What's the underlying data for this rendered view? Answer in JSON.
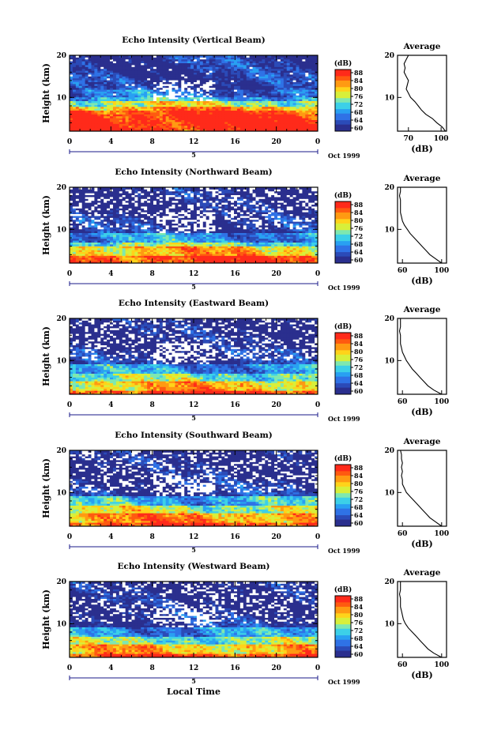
{
  "colors": {
    "colormap": [
      "#2a2f8e",
      "#2b4bb8",
      "#2f72e6",
      "#29a0f2",
      "#3cd0e8",
      "#7fe8b0",
      "#d8ef3a",
      "#ffd31a",
      "#ff9a12",
      "#ff5a10",
      "#ff2a1a"
    ],
    "missing": "#ffffff"
  },
  "colorbar": {
    "unit": "(dB)",
    "ticks": [
      "88",
      "84",
      "80",
      "76",
      "72",
      "68",
      "64",
      "60"
    ]
  },
  "common": {
    "y_axis_label": "Height (km)",
    "y_ticks": [
      "20",
      "10"
    ],
    "x_ticks": [
      "0",
      "4",
      "8",
      "12",
      "16",
      "20",
      "0"
    ],
    "day_label": "5",
    "month_label": "Oct 1999",
    "profile_title": "Average",
    "profile_xlabel": "(dB)",
    "profile_yticks": [
      "20",
      "10"
    ]
  },
  "x_axis_label": "Local Time",
  "panels": [
    {
      "title": "Echo Intensity (Vertical Beam)",
      "avg_xticks": [
        "70",
        "100"
      ]
    },
    {
      "title": "Echo Intensity (Northward Beam)",
      "avg_xticks": [
        "60",
        "100"
      ]
    },
    {
      "title": "Echo Intensity (Eastward Beam)",
      "avg_xticks": [
        "60",
        "100"
      ]
    },
    {
      "title": "Echo Intensity (Southward Beam)",
      "avg_xticks": [
        "60",
        "100"
      ]
    },
    {
      "title": "Echo Intensity (Westward Beam)",
      "avg_xticks": [
        "60",
        "100"
      ]
    }
  ],
  "chart_data": [
    {
      "type": "heatmap",
      "title": "Echo Intensity (Vertical Beam)",
      "xlabel": "",
      "ylabel": "Height (km)",
      "x_range_hours": [
        0,
        24
      ],
      "y_range_km": [
        2,
        20
      ],
      "color_range_db": [
        60,
        88
      ],
      "layers": [
        {
          "top_km": 6,
          "db": 88
        },
        {
          "top_km": 7,
          "db": 86
        },
        {
          "top_km": 8,
          "db": 82
        },
        {
          "top_km": 9,
          "db": 76
        },
        {
          "top_km": 10,
          "db": 70
        },
        {
          "top_km": 12,
          "db": 66
        },
        {
          "top_km": 20,
          "db": 62
        }
      ],
      "average_profile": {
        "title": "Average",
        "xlabel": "(dB)",
        "x_range_db": [
          60,
          105
        ],
        "y_range_km": [
          2,
          20
        ],
        "height_km": [
          2,
          3,
          4,
          5,
          6,
          7,
          8,
          9,
          10,
          11,
          12,
          13,
          14,
          15,
          16,
          17,
          18,
          19,
          20
        ],
        "db": [
          104,
          101,
          96,
          92,
          86,
          82,
          79,
          76,
          72,
          70,
          68,
          69,
          70,
          68,
          66,
          67,
          66,
          68,
          70
        ]
      }
    },
    {
      "type": "heatmap",
      "title": "Echo Intensity (Northward Beam)",
      "xlabel": "",
      "ylabel": "Height (km)",
      "x_range_hours": [
        0,
        24
      ],
      "y_range_km": [
        2,
        20
      ],
      "color_range_db": [
        60,
        88
      ],
      "layers": [
        {
          "top_km": 4,
          "db": 86
        },
        {
          "top_km": 6,
          "db": 80
        },
        {
          "top_km": 7,
          "db": 74
        },
        {
          "top_km": 9,
          "db": 68
        },
        {
          "top_km": 13,
          "db": 62
        },
        {
          "top_km": 20,
          "db": 60
        }
      ],
      "average_profile": {
        "title": "Average",
        "xlabel": "(dB)",
        "x_range_db": [
          55,
          105
        ],
        "y_range_km": [
          2,
          20
        ],
        "height_km": [
          2,
          3,
          4,
          5,
          6,
          7,
          8,
          9,
          10,
          11,
          12,
          13,
          14,
          15,
          16,
          17,
          18,
          19,
          20
        ],
        "db": [
          100,
          94,
          88,
          84,
          80,
          76,
          72,
          68,
          65,
          62,
          60,
          59,
          58,
          58,
          58,
          58,
          57,
          58,
          58
        ]
      }
    },
    {
      "type": "heatmap",
      "title": "Echo Intensity (Eastward Beam)",
      "xlabel": "",
      "ylabel": "Height (km)",
      "x_range_hours": [
        0,
        24
      ],
      "y_range_km": [
        2,
        20
      ],
      "color_range_db": [
        60,
        88
      ],
      "layers": [
        {
          "top_km": 3,
          "db": 86
        },
        {
          "top_km": 5,
          "db": 80
        },
        {
          "top_km": 7,
          "db": 74
        },
        {
          "top_km": 9,
          "db": 68
        },
        {
          "top_km": 13,
          "db": 62
        },
        {
          "top_km": 20,
          "db": 60
        }
      ],
      "average_profile": {
        "title": "Average",
        "xlabel": "(dB)",
        "x_range_db": [
          55,
          105
        ],
        "y_range_km": [
          2,
          20
        ],
        "height_km": [
          2,
          3,
          4,
          5,
          6,
          7,
          8,
          9,
          10,
          11,
          12,
          13,
          14,
          15,
          16,
          17,
          18,
          19,
          20
        ],
        "db": [
          100,
          92,
          86,
          82,
          78,
          74,
          70,
          67,
          64,
          62,
          60,
          59,
          58,
          58,
          58,
          57,
          58,
          58,
          58
        ]
      }
    },
    {
      "type": "heatmap",
      "title": "Echo Intensity (Southward Beam)",
      "xlabel": "",
      "ylabel": "Height (km)",
      "x_range_hours": [
        0,
        24
      ],
      "y_range_km": [
        2,
        20
      ],
      "color_range_db": [
        60,
        88
      ],
      "layers": [
        {
          "top_km": 3,
          "db": 86
        },
        {
          "top_km": 5,
          "db": 82
        },
        {
          "top_km": 7,
          "db": 76
        },
        {
          "top_km": 9,
          "db": 70
        },
        {
          "top_km": 13,
          "db": 62
        },
        {
          "top_km": 20,
          "db": 60
        }
      ],
      "average_profile": {
        "title": "Average",
        "xlabel": "(dB)",
        "x_range_db": [
          55,
          105
        ],
        "y_range_km": [
          2,
          20
        ],
        "height_km": [
          2,
          3,
          4,
          5,
          6,
          7,
          8,
          9,
          10,
          11,
          12,
          13,
          14,
          15,
          16,
          17,
          18,
          19,
          20
        ],
        "db": [
          100,
          94,
          88,
          84,
          80,
          76,
          72,
          68,
          64,
          62,
          60,
          60,
          59,
          60,
          59,
          60,
          59,
          59,
          58
        ]
      }
    },
    {
      "type": "heatmap",
      "title": "Echo Intensity (Westward Beam)",
      "xlabel": "Local Time",
      "ylabel": "Height (km)",
      "x_range_hours": [
        0,
        24
      ],
      "y_range_km": [
        2,
        20
      ],
      "color_range_db": [
        60,
        88
      ],
      "layers": [
        {
          "top_km": 3,
          "db": 86
        },
        {
          "top_km": 5,
          "db": 80
        },
        {
          "top_km": 7,
          "db": 74
        },
        {
          "top_km": 9,
          "db": 68
        },
        {
          "top_km": 13,
          "db": 62
        },
        {
          "top_km": 20,
          "db": 60
        }
      ],
      "average_profile": {
        "title": "Average",
        "xlabel": "(dB)",
        "x_range_db": [
          55,
          105
        ],
        "y_range_km": [
          2,
          20
        ],
        "height_km": [
          2,
          3,
          4,
          5,
          6,
          7,
          8,
          9,
          10,
          11,
          12,
          13,
          14,
          15,
          16,
          17,
          18,
          19,
          20
        ],
        "db": [
          100,
          92,
          86,
          82,
          78,
          74,
          70,
          66,
          63,
          61,
          60,
          59,
          58,
          58,
          58,
          57,
          58,
          58,
          58
        ]
      }
    }
  ]
}
